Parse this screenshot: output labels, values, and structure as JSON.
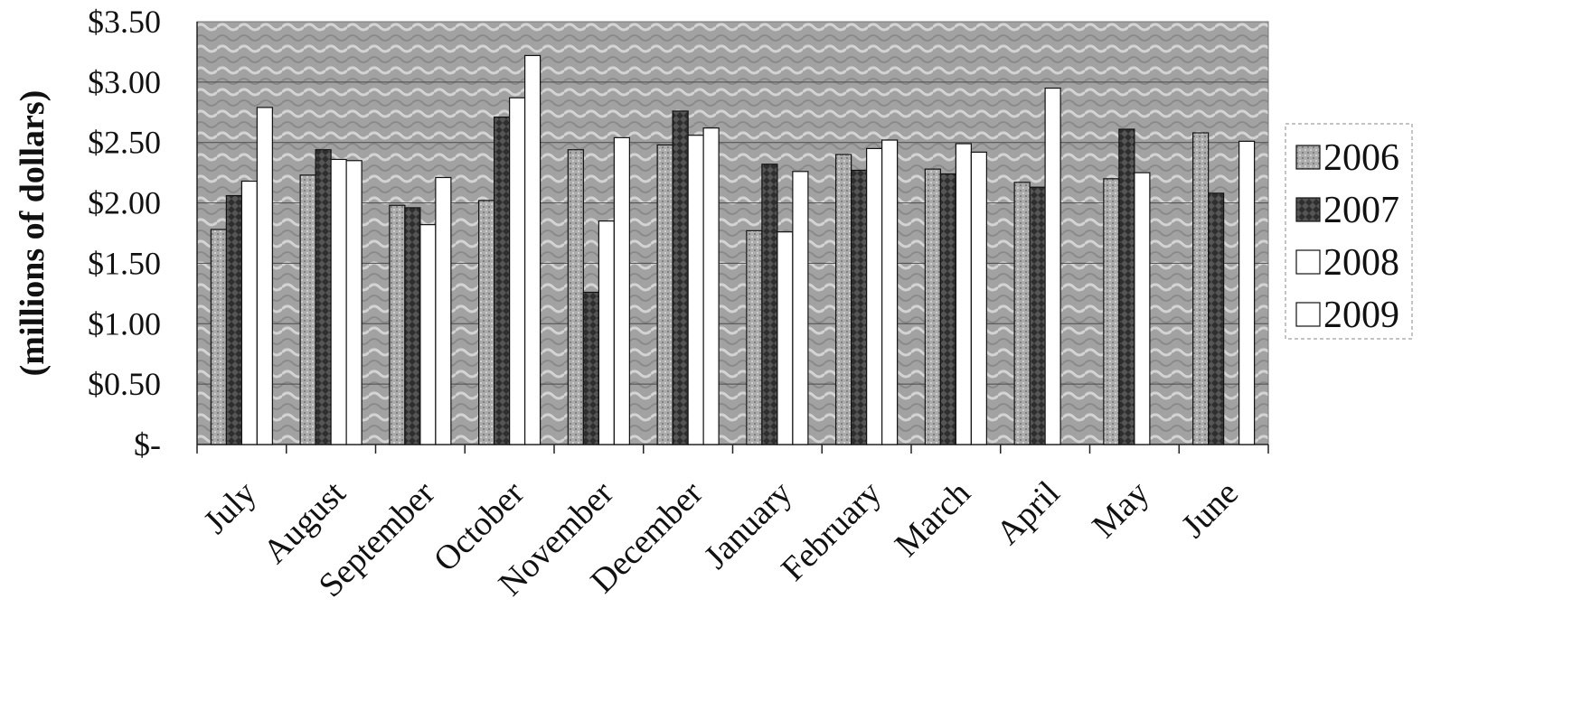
{
  "chart_data": {
    "type": "bar",
    "ylabel": "(millions of dollars)",
    "xlabel": "",
    "ylim": [
      0,
      3.5
    ],
    "yticks": [
      {
        "value": 3.5,
        "label": "$3.50"
      },
      {
        "value": 3.0,
        "label": "$3.00"
      },
      {
        "value": 2.5,
        "label": "$2.50"
      },
      {
        "value": 2.0,
        "label": "$2.00"
      },
      {
        "value": 1.5,
        "label": "$1.50"
      },
      {
        "value": 1.0,
        "label": "$1.00"
      },
      {
        "value": 0.5,
        "label": "$0.50"
      },
      {
        "value": 0.0,
        "label": "$-"
      }
    ],
    "grid": true,
    "legend_position": "right",
    "categories": [
      "July",
      "August",
      "September",
      "October",
      "November",
      "December",
      "January",
      "February",
      "March",
      "April",
      "May",
      "June"
    ],
    "series": [
      {
        "name": "2006",
        "color": "#a8a8a8",
        "values": [
          1.78,
          2.23,
          1.98,
          2.02,
          2.44,
          2.48,
          1.77,
          2.4,
          2.28,
          2.17,
          2.2,
          2.58
        ]
      },
      {
        "name": "2007",
        "color": "#303030",
        "values": [
          2.06,
          2.44,
          1.96,
          2.71,
          1.26,
          2.76,
          2.32,
          2.27,
          2.24,
          2.13,
          2.61,
          2.08
        ]
      },
      {
        "name": "2008",
        "color": "#ffffff",
        "values": [
          2.18,
          2.36,
          1.82,
          2.87,
          1.85,
          2.56,
          1.76,
          2.45,
          2.49,
          2.95,
          2.25,
          0
        ]
      },
      {
        "name": "2009",
        "color": "#ffffff",
        "values": [
          2.79,
          2.35,
          2.21,
          3.22,
          2.54,
          2.62,
          2.26,
          2.52,
          2.42,
          0,
          0,
          2.51
        ]
      }
    ]
  }
}
